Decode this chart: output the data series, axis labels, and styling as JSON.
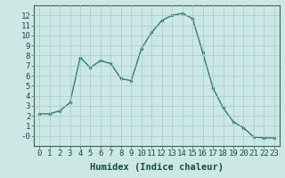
{
  "x": [
    0,
    1,
    2,
    3,
    4,
    5,
    6,
    7,
    8,
    9,
    10,
    11,
    12,
    13,
    14,
    15,
    16,
    17,
    18,
    19,
    20,
    21,
    22,
    23
  ],
  "y": [
    2.2,
    2.2,
    2.5,
    3.3,
    7.8,
    6.8,
    7.5,
    7.2,
    5.7,
    5.5,
    8.7,
    10.3,
    11.5,
    12.0,
    12.2,
    11.7,
    8.3,
    4.8,
    2.8,
    1.4,
    0.8,
    -0.1,
    -0.2,
    -0.2
  ],
  "line_color": "#2e7d6e",
  "marker": "o",
  "marker_size": 2.0,
  "bg_color": "#cde8e4",
  "grid_color": "#a0ccc6",
  "xlabel": "Humidex (Indice chaleur)",
  "xlim": [
    -0.5,
    23.5
  ],
  "ylim": [
    -1,
    13
  ],
  "ytick_labels": [
    "12",
    "11",
    "10",
    "9",
    "8",
    "7",
    "6",
    "5",
    "4",
    "3",
    "2",
    "1",
    "-0"
  ],
  "ytick_vals": [
    12,
    11,
    10,
    9,
    8,
    7,
    6,
    5,
    4,
    3,
    2,
    1,
    0
  ],
  "xtick_vals": [
    0,
    1,
    2,
    3,
    4,
    5,
    6,
    7,
    8,
    9,
    10,
    11,
    12,
    13,
    14,
    15,
    16,
    17,
    18,
    19,
    20,
    21,
    22,
    23
  ],
  "xlabel_fontsize": 7.5,
  "tick_fontsize": 6.5
}
